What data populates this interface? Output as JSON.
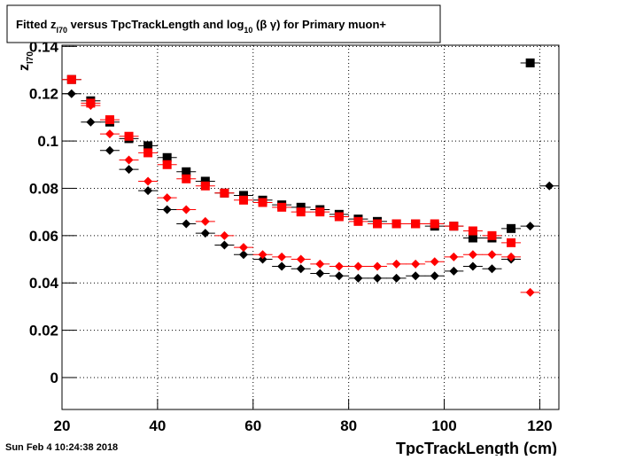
{
  "chart_data": {
    "type": "scatter",
    "title": [
      "Fitted  z",
      "I70",
      "  versus TpcTrackLength and log",
      "10",
      " (β γ) for Primary muon+"
    ],
    "y_label": [
      "z",
      "I70"
    ],
    "x_label": "TpcTrackLength (cm)",
    "timestamp": "Sun Feb  4 10:24:38 2018",
    "xlim": [
      20,
      124
    ],
    "ylim": [
      -0.0135,
      0.1405
    ],
    "xticks": [
      20,
      40,
      60,
      80,
      100,
      120
    ],
    "yticks": [
      0,
      0.02,
      0.04,
      0.06,
      0.08,
      0.1,
      0.12,
      0.14
    ],
    "grid": true,
    "series": [
      {
        "marker": "square",
        "color": "#000000",
        "x": [
          22,
          26,
          30,
          34,
          38,
          42,
          46,
          50,
          54,
          58,
          62,
          66,
          70,
          74,
          78,
          82,
          86,
          90,
          94,
          98,
          102,
          106,
          110,
          114,
          118
        ],
        "values": [
          0.126,
          0.117,
          0.108,
          0.101,
          0.098,
          0.093,
          0.087,
          0.083,
          0.078,
          0.077,
          0.075,
          0.073,
          0.072,
          0.071,
          0.069,
          0.067,
          0.066,
          0.065,
          0.065,
          0.064,
          0.064,
          0.059,
          0.059,
          0.063,
          0.133
        ]
      },
      {
        "marker": "square",
        "color": "#ff0000",
        "x": [
          22,
          26,
          30,
          34,
          38,
          42,
          46,
          50,
          54,
          58,
          62,
          66,
          70,
          74,
          78,
          82,
          86,
          90,
          94,
          98,
          102,
          106,
          110,
          114
        ],
        "values": [
          0.126,
          0.116,
          0.109,
          0.102,
          0.095,
          0.09,
          0.084,
          0.081,
          0.078,
          0.075,
          0.074,
          0.072,
          0.07,
          0.07,
          0.068,
          0.066,
          0.065,
          0.065,
          0.065,
          0.065,
          0.064,
          0.062,
          0.06,
          0.057
        ]
      },
      {
        "marker": "diamond",
        "color": "#000000",
        "x": [
          22,
          26,
          30,
          34,
          38,
          42,
          46,
          50,
          54,
          58,
          62,
          66,
          70,
          74,
          78,
          82,
          86,
          90,
          94,
          98,
          102,
          106,
          110,
          114,
          118,
          122
        ],
        "values": [
          0.12,
          0.108,
          0.096,
          0.088,
          0.079,
          0.071,
          0.065,
          0.061,
          0.056,
          0.052,
          0.05,
          0.047,
          0.046,
          0.044,
          0.043,
          0.042,
          0.042,
          0.042,
          0.043,
          0.043,
          0.045,
          0.047,
          0.046,
          0.05,
          0.064,
          0.081
        ]
      },
      {
        "marker": "diamond",
        "color": "#ff0000",
        "x": [
          26,
          30,
          34,
          38,
          42,
          46,
          50,
          54,
          58,
          62,
          66,
          70,
          74,
          78,
          82,
          86,
          90,
          94,
          98,
          102,
          106,
          110,
          114,
          118
        ],
        "values": [
          0.115,
          0.103,
          0.092,
          0.083,
          0.076,
          0.071,
          0.066,
          0.06,
          0.055,
          0.052,
          0.051,
          0.05,
          0.048,
          0.047,
          0.047,
          0.047,
          0.048,
          0.048,
          0.049,
          0.051,
          0.052,
          0.052,
          0.051,
          0.036
        ]
      }
    ]
  }
}
